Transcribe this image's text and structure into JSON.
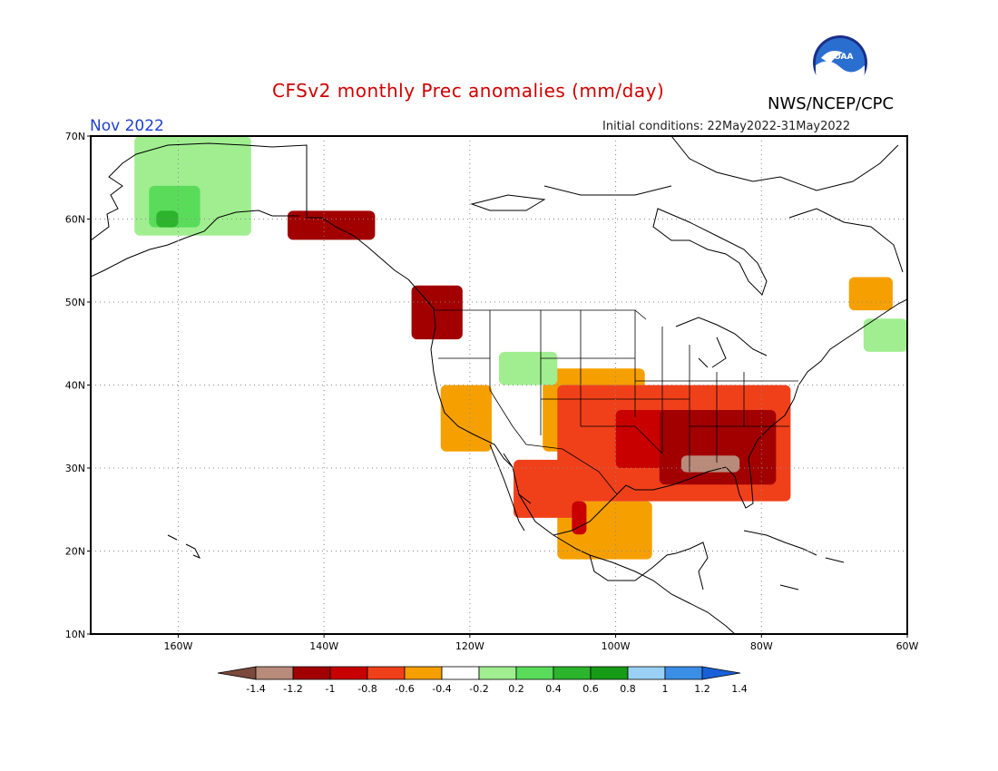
{
  "header": {
    "title": "CFSv2 monthly Prec anomalies (mm/day)",
    "agency": "NWS/NCEP/CPC",
    "logo_text": "NOAA",
    "month": "Nov 2022",
    "initial_conditions": "Initial conditions: 22May2022-31May2022"
  },
  "axes": {
    "lat_labels": [
      "70N",
      "60N",
      "50N",
      "40N",
      "30N",
      "20N",
      "10N"
    ],
    "lon_labels": [
      "160W",
      "140W",
      "120W",
      "100W",
      "80W",
      "60W"
    ]
  },
  "colorbar": {
    "ticks": [
      "-1.4",
      "-1.2",
      "-1",
      "-0.8",
      "-0.6",
      "-0.4",
      "-0.2",
      "0.2",
      "0.4",
      "0.6",
      "0.8",
      "1",
      "1.2",
      "1.4"
    ],
    "colors": [
      "#7b4a3c",
      "#b98b7a",
      "#a20000",
      "#c80000",
      "#f0401a",
      "#f5a000",
      "#ffffff",
      "#a0ee90",
      "#5adc5a",
      "#2cb42c",
      "#169b16",
      "#9ad0f5",
      "#3a8ee6",
      "#1960d8"
    ]
  },
  "chart_data": {
    "type": "heatmap",
    "title": "CFSv2 monthly Prec anomalies (mm/day)",
    "subtitle": "Nov 2022",
    "units": "mm/day",
    "lon_range": [
      -172,
      -60
    ],
    "lat_range": [
      10,
      70
    ],
    "regions": [
      {
        "category": "dry_strong",
        "value": -1.2,
        "lon": [
          -91,
          -83
        ],
        "lat": [
          29.5,
          31.5
        ]
      },
      {
        "category": "dry_severe",
        "value": -0.9,
        "lon": [
          -94,
          -78
        ],
        "lat": [
          28,
          37
        ]
      },
      {
        "category": "dry_severe",
        "value": -0.9,
        "lon": [
          -128,
          -121
        ],
        "lat": [
          45.5,
          52
        ]
      },
      {
        "category": "dry_severe",
        "value": -0.9,
        "lon": [
          -145,
          -133
        ],
        "lat": [
          57.5,
          61
        ]
      },
      {
        "category": "dry_moderate",
        "value": -0.7,
        "lon": [
          -100,
          -86
        ],
        "lat": [
          30,
          37
        ]
      },
      {
        "category": "dry_moderate",
        "value": -0.7,
        "lon": [
          -106,
          -104
        ],
        "lat": [
          22,
          26
        ]
      },
      {
        "category": "dry_light",
        "value": -0.5,
        "lon": [
          -108,
          -76
        ],
        "lat": [
          26,
          40
        ]
      },
      {
        "category": "dry_light",
        "value": -0.5,
        "lon": [
          -114,
          -105
        ],
        "lat": [
          24,
          31
        ]
      },
      {
        "category": "dry_weak",
        "value": -0.3,
        "lon": [
          -110,
          -96
        ],
        "lat": [
          32,
          42
        ]
      },
      {
        "category": "dry_weak",
        "value": -0.3,
        "lon": [
          -108,
          -95
        ],
        "lat": [
          19,
          26
        ]
      },
      {
        "category": "dry_weak",
        "value": -0.3,
        "lon": [
          -124,
          -117
        ],
        "lat": [
          32,
          40
        ]
      },
      {
        "category": "dry_weak",
        "value": -0.3,
        "lon": [
          -68,
          -62
        ],
        "lat": [
          49,
          53
        ]
      },
      {
        "category": "wet_weak",
        "value": 0.3,
        "lon": [
          -166,
          -150
        ],
        "lat": [
          58,
          70
        ]
      },
      {
        "category": "wet_weak",
        "value": 0.3,
        "lon": [
          -116,
          -108
        ],
        "lat": [
          40,
          44
        ]
      },
      {
        "category": "wet_weak",
        "value": 0.3,
        "lon": [
          -66,
          -60
        ],
        "lat": [
          44,
          48
        ]
      },
      {
        "category": "wet_moderate",
        "value": 0.5,
        "lon": [
          -164,
          -157
        ],
        "lat": [
          59,
          64
        ]
      },
      {
        "category": "wet_strong",
        "value": 0.7,
        "lon": [
          -163,
          -160
        ],
        "lat": [
          59,
          61
        ]
      }
    ]
  }
}
